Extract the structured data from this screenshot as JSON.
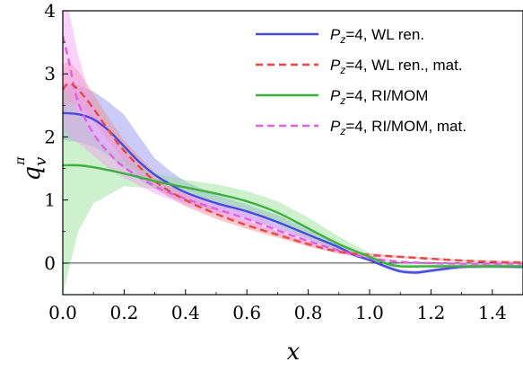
{
  "chart_data": {
    "type": "line",
    "xlabel": "x",
    "ylabel": "q",
    "ylabel_sup": "π",
    "ylabel_sub": "v",
    "xlim": [
      0.0,
      1.5
    ],
    "ylim": [
      -0.5,
      4.0
    ],
    "x_ticks": [
      0.0,
      0.2,
      0.4,
      0.6,
      0.8,
      1.0,
      1.2,
      1.4
    ],
    "x_tick_labels": [
      "0.0",
      "0.2",
      "0.4",
      "0.6",
      "0.8",
      "1.0",
      "1.2",
      "1.4"
    ],
    "y_ticks": [
      0,
      1,
      2,
      3,
      4
    ],
    "y_tick_labels": [
      "0",
      "1",
      "2",
      "3",
      "4"
    ],
    "zero_line": true,
    "legend_position": "top-right",
    "series": [
      {
        "name": "Pz=4, WL ren.",
        "label_P": "P",
        "label_sub": "z",
        "label_rest": "=4, WL ren.",
        "color": "#4a4ae0",
        "band_color": "#8c8cf0",
        "dashed": false,
        "x": [
          0.0,
          0.05,
          0.1,
          0.15,
          0.2,
          0.25,
          0.3,
          0.35,
          0.4,
          0.5,
          0.6,
          0.7,
          0.8,
          0.9,
          0.95,
          1.0,
          1.05,
          1.1,
          1.15,
          1.2,
          1.3,
          1.4,
          1.5
        ],
        "y": [
          2.38,
          2.36,
          2.28,
          2.1,
          1.85,
          1.6,
          1.4,
          1.25,
          1.12,
          0.95,
          0.82,
          0.65,
          0.45,
          0.25,
          0.13,
          0.05,
          -0.05,
          -0.13,
          -0.15,
          -0.12,
          -0.06,
          -0.05,
          -0.06
        ],
        "lower": [
          1.95,
          1.92,
          1.85,
          1.7,
          1.5,
          1.32,
          1.18,
          1.05,
          0.96,
          0.82,
          0.7,
          0.54,
          0.37,
          0.2,
          0.1,
          0.02,
          -0.08,
          -0.16,
          -0.18,
          -0.15,
          -0.09,
          -0.08,
          -0.09
        ],
        "upper": [
          2.85,
          2.82,
          2.72,
          2.55,
          2.35,
          2.0,
          1.66,
          1.46,
          1.29,
          1.08,
          0.93,
          0.76,
          0.53,
          0.3,
          0.16,
          0.08,
          -0.02,
          -0.1,
          -0.12,
          -0.09,
          -0.03,
          -0.02,
          -0.03
        ]
      },
      {
        "name": "Pz=4, WL ren., mat.",
        "label_P": "P",
        "label_sub": "z",
        "label_rest": "=4, WL ren., mat.",
        "color": "#e84848",
        "band_color": "#f08c8c",
        "dashed": true,
        "x": [
          0.0,
          0.02,
          0.05,
          0.1,
          0.15,
          0.2,
          0.3,
          0.4,
          0.5,
          0.6,
          0.7,
          0.8,
          0.9,
          1.0,
          1.1,
          1.2,
          1.3,
          1.4,
          1.5
        ],
        "y": [
          2.75,
          2.85,
          2.75,
          2.45,
          2.1,
          1.78,
          1.3,
          1.0,
          0.78,
          0.6,
          0.45,
          0.3,
          0.18,
          0.13,
          0.1,
          0.07,
          0.04,
          0.02,
          0.01
        ],
        "lower": [
          2.4,
          2.55,
          2.5,
          2.25,
          1.92,
          1.62,
          1.18,
          0.9,
          0.7,
          0.54,
          0.4,
          0.26,
          0.15,
          0.1,
          0.08,
          0.05,
          0.02,
          0.0,
          -0.01
        ],
        "upper": [
          3.15,
          3.2,
          3.05,
          2.68,
          2.3,
          1.95,
          1.43,
          1.1,
          0.86,
          0.67,
          0.5,
          0.34,
          0.21,
          0.16,
          0.12,
          0.09,
          0.06,
          0.04,
          0.03
        ]
      },
      {
        "name": "Pz=4, RI/MOM",
        "label_P": "P",
        "label_sub": "z",
        "label_rest": "=4, RI/MOM",
        "color": "#3fb03f",
        "band_color": "#8ee08e",
        "dashed": false,
        "x": [
          0.0,
          0.05,
          0.1,
          0.2,
          0.3,
          0.4,
          0.5,
          0.6,
          0.7,
          0.8,
          0.9,
          1.0,
          1.05,
          1.1,
          1.2,
          1.3,
          1.4,
          1.5
        ],
        "y": [
          1.55,
          1.55,
          1.52,
          1.42,
          1.3,
          1.2,
          1.1,
          0.98,
          0.8,
          0.55,
          0.3,
          0.1,
          0.0,
          -0.05,
          -0.05,
          -0.05,
          -0.05,
          -0.05
        ],
        "lower": [
          -0.5,
          0.5,
          0.95,
          1.22,
          1.18,
          1.1,
          0.98,
          0.83,
          0.62,
          0.38,
          0.18,
          0.04,
          -0.04,
          -0.08,
          -0.08,
          -0.08,
          -0.08,
          -0.08
        ],
        "upper": [
          2.8,
          2.4,
          2.0,
          1.65,
          1.43,
          1.32,
          1.25,
          1.14,
          0.98,
          0.72,
          0.42,
          0.16,
          0.04,
          -0.02,
          -0.02,
          -0.02,
          -0.02,
          -0.02
        ]
      },
      {
        "name": "Pz=4, RI/MOM, mat.",
        "label_P": "P",
        "label_sub": "z",
        "label_rest": "=4, RI/MOM, mat.",
        "color": "#e060e0",
        "band_color": "#f59cf5",
        "dashed": true,
        "x": [
          0.0,
          0.02,
          0.05,
          0.1,
          0.15,
          0.2,
          0.3,
          0.4,
          0.5,
          0.6,
          0.7,
          0.8,
          0.9,
          1.0,
          1.1,
          1.2,
          1.3,
          1.4,
          1.5
        ],
        "y": [
          3.6,
          3.2,
          2.55,
          2.05,
          1.75,
          1.52,
          1.22,
          1.02,
          0.86,
          0.7,
          0.52,
          0.35,
          0.2,
          0.08,
          0.02,
          0.0,
          -0.01,
          -0.01,
          -0.01
        ],
        "lower": [
          2.2,
          2.0,
          1.9,
          1.7,
          1.5,
          1.35,
          1.1,
          0.92,
          0.76,
          0.6,
          0.44,
          0.28,
          0.15,
          0.05,
          0.0,
          -0.02,
          -0.03,
          -0.03,
          -0.03
        ],
        "upper": [
          4.0,
          4.0,
          3.3,
          2.45,
          2.05,
          1.72,
          1.36,
          1.12,
          0.96,
          0.8,
          0.6,
          0.42,
          0.25,
          0.11,
          0.04,
          0.02,
          0.01,
          0.01,
          0.01
        ]
      }
    ]
  }
}
